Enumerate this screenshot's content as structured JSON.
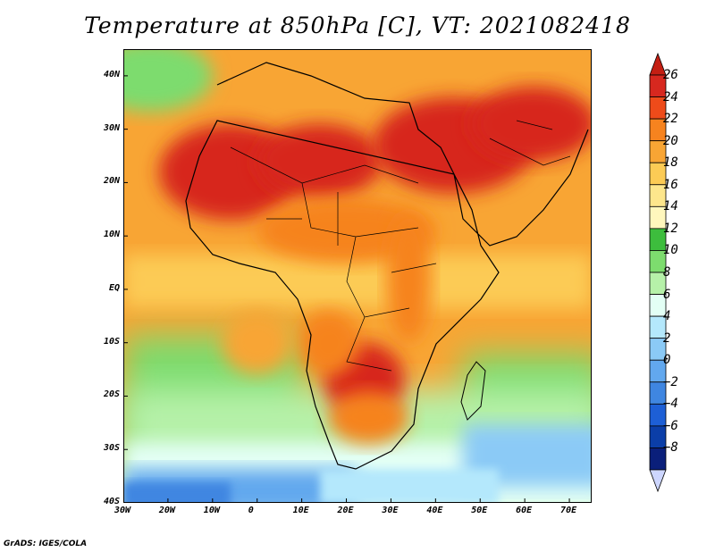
{
  "title": "Temperature at 850hPa [C], VT: 2021082418",
  "credit": "GrADS: IGES/COLA",
  "map": {
    "lon_range": [
      -30,
      75
    ],
    "lat_range": [
      -40,
      45
    ],
    "lat_ticks": [
      {
        "value": 40,
        "label": "40N"
      },
      {
        "value": 30,
        "label": "30N"
      },
      {
        "value": 20,
        "label": "20N"
      },
      {
        "value": 10,
        "label": "10N"
      },
      {
        "value": 0,
        "label": "EQ"
      },
      {
        "value": -10,
        "label": "10S"
      },
      {
        "value": -20,
        "label": "20S"
      },
      {
        "value": -30,
        "label": "30S"
      },
      {
        "value": -40,
        "label": "40S"
      }
    ],
    "lon_ticks": [
      {
        "value": -30,
        "label": "30W"
      },
      {
        "value": -20,
        "label": "20W"
      },
      {
        "value": -10,
        "label": "10W"
      },
      {
        "value": 0,
        "label": "0"
      },
      {
        "value": 10,
        "label": "10E"
      },
      {
        "value": 20,
        "label": "20E"
      },
      {
        "value": 30,
        "label": "30E"
      },
      {
        "value": 40,
        "label": "40E"
      },
      {
        "value": 50,
        "label": "50E"
      },
      {
        "value": 60,
        "label": "60E"
      },
      {
        "value": 70,
        "label": "70E"
      }
    ]
  },
  "colorbar": {
    "levels": [
      {
        "label": "26",
        "color": "#d7281f"
      },
      {
        "label": "24",
        "color": "#ee4b1a"
      },
      {
        "label": "22",
        "color": "#f6831f"
      },
      {
        "label": "20",
        "color": "#f8a534"
      },
      {
        "label": "18",
        "color": "#fccb55"
      },
      {
        "label": "16",
        "color": "#fde68c"
      },
      {
        "label": "14",
        "color": "#fff7bd"
      },
      {
        "label": "12",
        "color": "#3dbd3d"
      },
      {
        "label": "10",
        "color": "#7ddc6e"
      },
      {
        "label": "8",
        "color": "#b6f1a9"
      },
      {
        "label": "6",
        "color": "#e3fff5"
      },
      {
        "label": "4",
        "color": "#b4e8fc"
      },
      {
        "label": "2",
        "color": "#8bcaf6"
      },
      {
        "label": "0",
        "color": "#62a8ee"
      },
      {
        "label": "−2",
        "color": "#3f86e1"
      },
      {
        "label": "−4",
        "color": "#1d5fd6"
      },
      {
        "label": "−6",
        "color": "#0b3ea8"
      },
      {
        "label": "−8",
        "color": "#0a1f7a"
      }
    ],
    "top_arrow_color": "#c41f13",
    "bottom_arrow_color": "#cdd6ff"
  },
  "fields": [
    {
      "name": "sahara-west-hot",
      "lon": -6,
      "lat": 22,
      "rx": 16,
      "ry": 9,
      "color": "#d7281f"
    },
    {
      "name": "sahara-central-hot",
      "lon": 14,
      "lat": 24,
      "rx": 14,
      "ry": 7,
      "color": "#d7281f"
    },
    {
      "name": "arabia-hot",
      "lon": 44,
      "lat": 27,
      "rx": 18,
      "ry": 9,
      "color": "#d7281f"
    },
    {
      "name": "iran-hot",
      "lon": 62,
      "lat": 31,
      "rx": 14,
      "ry": 7,
      "color": "#d7281f"
    },
    {
      "name": "sahel-warm",
      "lon": 20,
      "lat": 11,
      "rx": 20,
      "ry": 6,
      "color": "#f6831f"
    },
    {
      "name": "eastafrica-warm",
      "lon": 34,
      "lat": 2,
      "rx": 5,
      "ry": 12,
      "color": "#f6831f"
    },
    {
      "name": "south-central-hot",
      "lon": 24,
      "lat": -17,
      "rx": 9,
      "ry": 7,
      "color": "#d7281f"
    },
    {
      "name": "angola-warm",
      "lon": 16,
      "lat": -10,
      "rx": 7,
      "ry": 6,
      "color": "#f6831f"
    },
    {
      "name": "kalahari-warm",
      "lon": 25,
      "lat": -24,
      "rx": 9,
      "ry": 5,
      "color": "#f6831f"
    },
    {
      "name": "atlantic-south-warm",
      "lon": 0,
      "lat": -10,
      "rx": 8,
      "ry": 6,
      "color": "#f8a534"
    }
  ]
}
